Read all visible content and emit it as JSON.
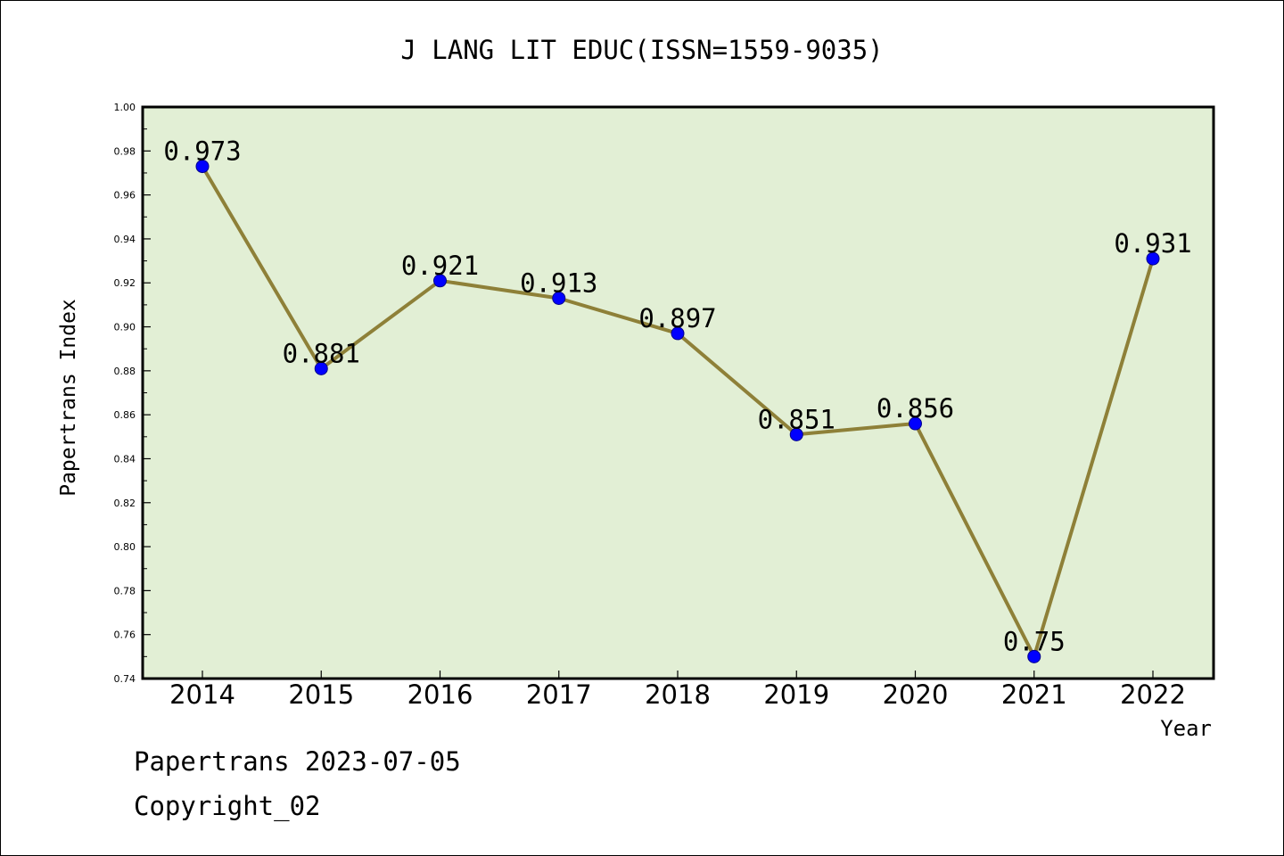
{
  "chart_data": {
    "type": "line",
    "title": "J LANG LIT EDUC(ISSN=1559-9035)",
    "xlabel": "Year",
    "ylabel": "Papertrans Index",
    "categories": [
      "2014",
      "2015",
      "2016",
      "2017",
      "2018",
      "2019",
      "2020",
      "2021",
      "2022"
    ],
    "values": [
      0.973,
      0.881,
      0.921,
      0.913,
      0.897,
      0.851,
      0.856,
      0.75,
      0.931
    ],
    "data_labels": [
      "0.973",
      "0.881",
      "0.921",
      "0.913",
      "0.897",
      "0.851",
      "0.856",
      "0.75",
      "0.931"
    ],
    "ylim": [
      0.74,
      1.0
    ],
    "yticks": [
      "0.74",
      "0.76",
      "0.78",
      "0.80",
      "0.82",
      "0.84",
      "0.86",
      "0.88",
      "0.90",
      "0.92",
      "0.94",
      "0.96",
      "0.98",
      "1.00"
    ],
    "grid": false,
    "legend": "none",
    "colors": {
      "plot_background": "#e2efd5",
      "line": "#8e8038",
      "marker": "#0000ff"
    }
  },
  "footer": {
    "source_line": "Papertrans 2023-07-05",
    "copyright_line": "Copyright_02"
  }
}
